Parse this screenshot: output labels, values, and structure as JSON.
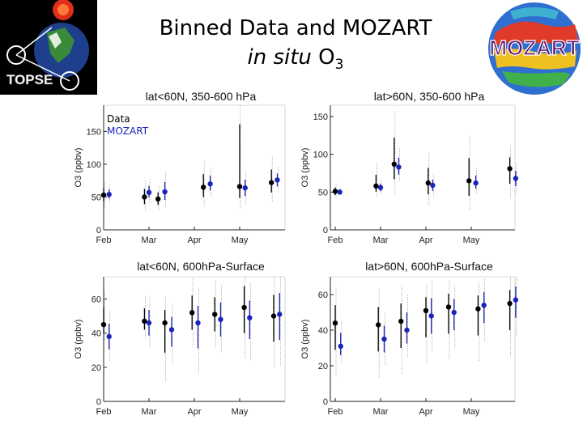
{
  "slide": {
    "title_line1": "Binned Data and MOZART",
    "title_line2_italic": "in situ",
    "title_line2_rest": " O",
    "title_line2_sub": "3"
  },
  "logos": {
    "left_text": "TOPSE",
    "right_text": "MOZART"
  },
  "legend": {
    "data_label": "Data",
    "mozart_label": "MOZART"
  },
  "colors": {
    "data": "#000000",
    "mozart": "#1a24b8",
    "axis": "#222222",
    "title": "#111111"
  },
  "chart_data": [
    {
      "type": "scatter",
      "title": "lat<60N, 350-600 hPa",
      "ylabel": "O3 (ppbv)",
      "ylim": [
        0,
        190
      ],
      "yticks": [
        0,
        50,
        100,
        150
      ],
      "categories": [
        "Feb",
        "Mar",
        "Apr",
        "May"
      ],
      "series": [
        {
          "name": "Data",
          "x": [
            1.0,
            1.9,
            2.2,
            3.2,
            4.0,
            4.7
          ],
          "y": [
            53,
            50,
            47,
            65,
            66,
            72
          ],
          "yerr_lo": [
            20,
            22,
            18,
            30,
            35,
            30
          ],
          "yerr_hi": [
            20,
            25,
            20,
            40,
            190,
            40
          ]
        },
        {
          "name": "MOZART",
          "x": [
            1.12,
            2.0,
            2.35,
            3.35,
            4.12,
            4.83
          ],
          "y": [
            54,
            57,
            58,
            70,
            64,
            76
          ],
          "yerr_lo": [
            12,
            15,
            25,
            20,
            25,
            20
          ],
          "yerr_hi": [
            15,
            20,
            30,
            25,
            25,
            20
          ]
        }
      ]
    },
    {
      "type": "scatter",
      "title": "lat>60N, 350-600 hPa",
      "ylabel": "O3 (ppbv)",
      "ylim": [
        0,
        165
      ],
      "yticks": [
        0,
        50,
        100,
        150
      ],
      "categories": [
        "Feb",
        "Mar",
        "Apr",
        "May"
      ],
      "series": [
        {
          "name": "Data",
          "x": [
            1.0,
            1.9,
            2.3,
            3.05,
            3.95,
            4.85
          ],
          "y": [
            51,
            58,
            87,
            62,
            65,
            81
          ],
          "yerr_lo": [
            10,
            15,
            40,
            30,
            40,
            40
          ],
          "yerr_hi": [
            10,
            30,
            70,
            40,
            60,
            30
          ]
        },
        {
          "name": "MOZART",
          "x": [
            1.1,
            2.0,
            2.4,
            3.15,
            4.1,
            4.98
          ],
          "y": [
            50,
            56,
            83,
            59,
            62,
            68
          ],
          "yerr_lo": [
            5,
            10,
            20,
            15,
            15,
            20
          ],
          "yerr_hi": [
            5,
            10,
            25,
            15,
            20,
            20
          ]
        }
      ]
    },
    {
      "type": "scatter",
      "title": "lat<60N, 600hPa-Surface",
      "ylabel": "O3 (ppbv)",
      "ylim": [
        0,
        73
      ],
      "yticks": [
        0,
        20,
        40,
        60
      ],
      "categories": [
        "Feb",
        "Mar",
        "Apr",
        "May"
      ],
      "series": [
        {
          "name": "Data",
          "x": [
            1.0,
            1.9,
            2.35,
            2.95,
            3.45,
            4.1,
            4.75
          ],
          "y": [
            45,
            47,
            46,
            52,
            51,
            55,
            50
          ],
          "yerr_lo": [
            10,
            10,
            35,
            20,
            20,
            30,
            30
          ],
          "yerr_hi": [
            20,
            15,
            15,
            20,
            20,
            25,
            25
          ]
        },
        {
          "name": "MOZART",
          "x": [
            1.12,
            2.0,
            2.5,
            3.08,
            3.58,
            4.22,
            4.88
          ],
          "y": [
            38,
            46,
            42,
            46,
            48,
            49,
            51
          ],
          "yerr_lo": [
            15,
            15,
            20,
            30,
            20,
            25,
            30
          ],
          "yerr_hi": [
            15,
            15,
            15,
            20,
            20,
            20,
            25
          ]
        }
      ]
    },
    {
      "type": "scatter",
      "title": "lat>60N, 600hPa-Surface",
      "ylabel": "O3 (ppbv)",
      "ylim": [
        0,
        70
      ],
      "yticks": [
        0,
        20,
        40,
        60
      ],
      "categories": [
        "Feb",
        "Mar",
        "Apr",
        "May"
      ],
      "series": [
        {
          "name": "Data",
          "x": [
            1.0,
            1.95,
            2.45,
            3.0,
            3.5,
            4.15,
            4.85
          ],
          "y": [
            44,
            43,
            45,
            51,
            53,
            52,
            55
          ],
          "yerr_lo": [
            30,
            30,
            30,
            30,
            30,
            30,
            30
          ],
          "yerr_hi": [
            20,
            20,
            20,
            15,
            15,
            15,
            15
          ]
        },
        {
          "name": "MOZART",
          "x": [
            1.12,
            2.08,
            2.58,
            3.12,
            3.62,
            4.28,
            4.98
          ],
          "y": [
            31,
            35,
            40,
            48,
            50,
            54,
            57
          ],
          "yerr_lo": [
            10,
            15,
            15,
            20,
            20,
            20,
            20
          ],
          "yerr_hi": [
            15,
            15,
            20,
            20,
            15,
            15,
            15
          ]
        }
      ]
    }
  ]
}
